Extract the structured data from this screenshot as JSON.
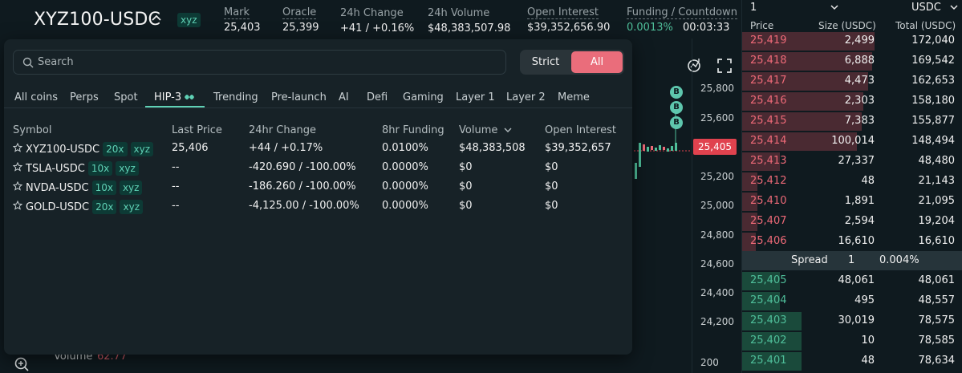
{
  "header": {
    "pair": "XYZ100-USDC",
    "tag": "xyz",
    "stats": [
      {
        "label": "Mark",
        "value": "25,403",
        "dashed": true
      },
      {
        "label": "Oracle",
        "value": "25,399",
        "dashed": true
      },
      {
        "label": "24h Change",
        "value": "+41 / +0.16%",
        "dashed": false
      },
      {
        "label": "24h Volume",
        "value": "$48,383,507.98",
        "dashed": false
      },
      {
        "label": "Open Interest",
        "value": "$39,352,656.90",
        "dashed": true
      },
      {
        "label": "Funding / Countdown",
        "value": "0.0013%",
        "value2": "00:03:33",
        "dashed": true
      }
    ]
  },
  "chart": {
    "axis_labels": [
      "25,800",
      "25,600",
      "25,200",
      "25,000",
      "24,800",
      "24,600",
      "24,400",
      "24,200",
      "200"
    ],
    "current_price": "25,405",
    "markers": [
      "B",
      "B",
      "B"
    ],
    "volume_label": "Volume",
    "volume_value": "62.77"
  },
  "dropdown": {
    "search_placeholder": "Search",
    "toggle": {
      "strict": "Strict",
      "all": "All",
      "active": "All"
    },
    "tabs": [
      "All coins",
      "Perps",
      "Spot",
      "HIP-3",
      "Trending",
      "Pre-launch",
      "AI",
      "Defi",
      "Gaming",
      "Layer 1",
      "Layer 2",
      "Meme"
    ],
    "active_tab": "HIP-3",
    "columns": [
      "Symbol",
      "Last Price",
      "24hr Change",
      "8hr Funding",
      "Volume",
      "Open Interest"
    ],
    "rows": [
      {
        "symbol": "XYZ100-USDC",
        "leverage": "20x",
        "tag": "xyz",
        "last_price": "25,406",
        "change": "+44 / +0.17%",
        "change_dir": "up",
        "funding": "0.0100%",
        "volume": "$48,383,508",
        "open_interest": "$39,352,657"
      },
      {
        "symbol": "TSLA-USDC",
        "leverage": "10x",
        "tag": "xyz",
        "last_price": "--",
        "change": "-420.690 / -100.00%",
        "change_dir": "down",
        "funding": "0.0000%",
        "volume": "$0",
        "open_interest": "$0"
      },
      {
        "symbol": "NVDA-USDC",
        "leverage": "10x",
        "tag": "xyz",
        "last_price": "--",
        "change": "-186.260 / -100.00%",
        "change_dir": "down",
        "funding": "0.0000%",
        "volume": "$0",
        "open_interest": "$0"
      },
      {
        "symbol": "GOLD-USDC",
        "leverage": "20x",
        "tag": "xyz",
        "last_price": "--",
        "change": "-4,125.00 / -100.00%",
        "change_dir": "down",
        "funding": "0.0000%",
        "volume": "$0",
        "open_interest": "$0"
      }
    ]
  },
  "orderbook": {
    "tick_size": "1",
    "unit": "USDC",
    "headers": [
      "Price",
      "Size (USDC)",
      "Total (USDC)"
    ],
    "asks": [
      {
        "price": "25,419",
        "size": "2,499",
        "total": "172,040",
        "depth": 0.6
      },
      {
        "price": "25,418",
        "size": "6,888",
        "total": "169,542",
        "depth": 0.59
      },
      {
        "price": "25,417",
        "size": "4,473",
        "total": "162,653",
        "depth": 0.57
      },
      {
        "price": "25,416",
        "size": "2,303",
        "total": "158,180",
        "depth": 0.55
      },
      {
        "price": "25,415",
        "size": "7,383",
        "total": "155,877",
        "depth": 0.54
      },
      {
        "price": "25,414",
        "size": "100,014",
        "total": "148,494",
        "depth": 0.52
      },
      {
        "price": "25,413",
        "size": "27,337",
        "total": "48,480",
        "depth": 0.17
      },
      {
        "price": "25,412",
        "size": "48",
        "total": "21,143",
        "depth": 0.07
      },
      {
        "price": "25,410",
        "size": "1,891",
        "total": "21,095",
        "depth": 0.07
      },
      {
        "price": "25,407",
        "size": "2,594",
        "total": "19,204",
        "depth": 0.07
      },
      {
        "price": "25,406",
        "size": "16,610",
        "total": "16,610",
        "depth": 0.06
      }
    ],
    "spread": {
      "label": "Spread",
      "value": "1",
      "percent": "0.004%"
    },
    "bids": [
      {
        "price": "25,405",
        "size": "48,061",
        "total": "48,061",
        "depth": 0.17
      },
      {
        "price": "25,404",
        "size": "495",
        "total": "48,557",
        "depth": 0.17
      },
      {
        "price": "25,403",
        "size": "30,019",
        "total": "78,575",
        "depth": 0.27
      },
      {
        "price": "25,402",
        "size": "10",
        "total": "78,585",
        "depth": 0.27
      },
      {
        "price": "25,401",
        "size": "48",
        "total": "78,634",
        "depth": 0.27
      }
    ]
  },
  "colors": {
    "accent": "#5fd1b5",
    "up": "#4fbf9a",
    "down": "#ef6a78",
    "toggle_active": "#ea6d7b"
  }
}
